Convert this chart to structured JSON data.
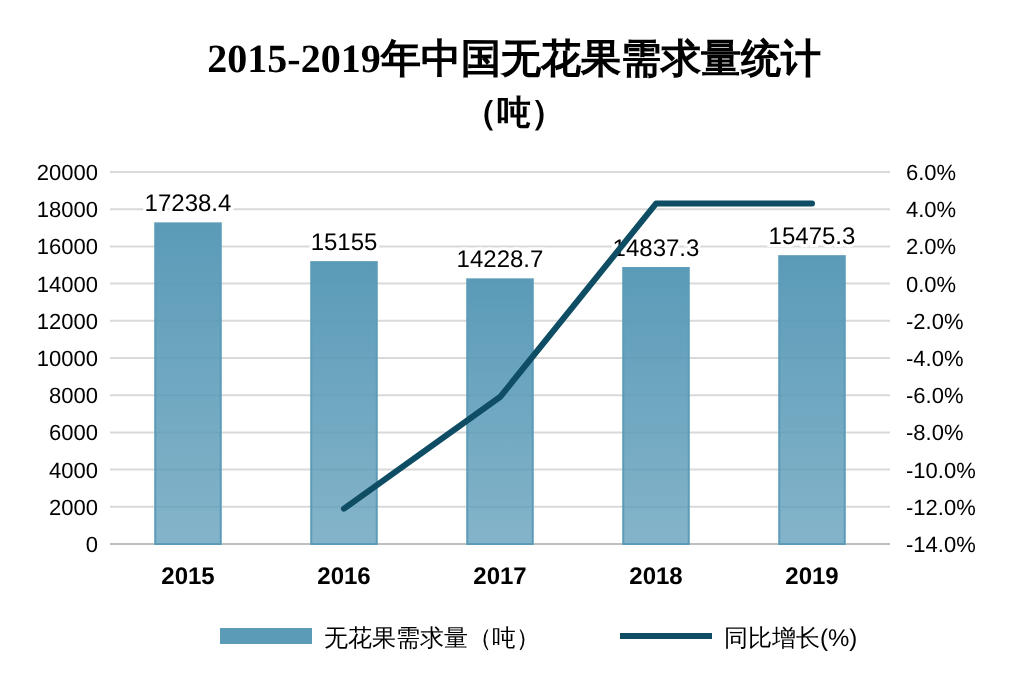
{
  "chart_data": {
    "type": "bar",
    "title": "2015-2019年中国无花果需求量统计",
    "subtitle": "（吨）",
    "categories": [
      "2015",
      "2016",
      "2017",
      "2018",
      "2019"
    ],
    "series": [
      {
        "name": "无花果需求量（吨）",
        "color": "#5b9bb8",
        "values": [
          17238.4,
          15155,
          14228.7,
          14837.3,
          15475.3
        ],
        "value_labels": [
          "17238.4",
          "15155",
          "14228.7",
          "14837.3",
          "15475.3"
        ]
      },
      {
        "name": "同比增长(%)",
        "type": "line",
        "axis": "y2",
        "color": "#0e4d64",
        "values": [
          null,
          -12.1,
          -6.1,
          4.3,
          4.3
        ]
      }
    ],
    "ylim": [
      0,
      20000
    ],
    "yticks": [
      0,
      2000,
      4000,
      6000,
      8000,
      10000,
      12000,
      14000,
      16000,
      18000,
      20000
    ],
    "y2lim": [
      -14,
      6
    ],
    "y2ticks": [
      {
        "value": -14,
        "label": "-14.0%"
      },
      {
        "value": -12,
        "label": "-12.0%"
      },
      {
        "value": -10,
        "label": "-10.0%"
      },
      {
        "value": -8,
        "label": "-8.0%"
      },
      {
        "value": -6,
        "label": "-6.0%"
      },
      {
        "value": -4,
        "label": "-4.0%"
      },
      {
        "value": -2,
        "label": "-2.0%"
      },
      {
        "value": 0,
        "label": "0.0%"
      },
      {
        "value": 2,
        "label": "2.0%"
      },
      {
        "value": 4,
        "label": "4.0%"
      },
      {
        "value": 6,
        "label": "6.0%"
      }
    ],
    "grid": "y",
    "legend": "bottom"
  }
}
